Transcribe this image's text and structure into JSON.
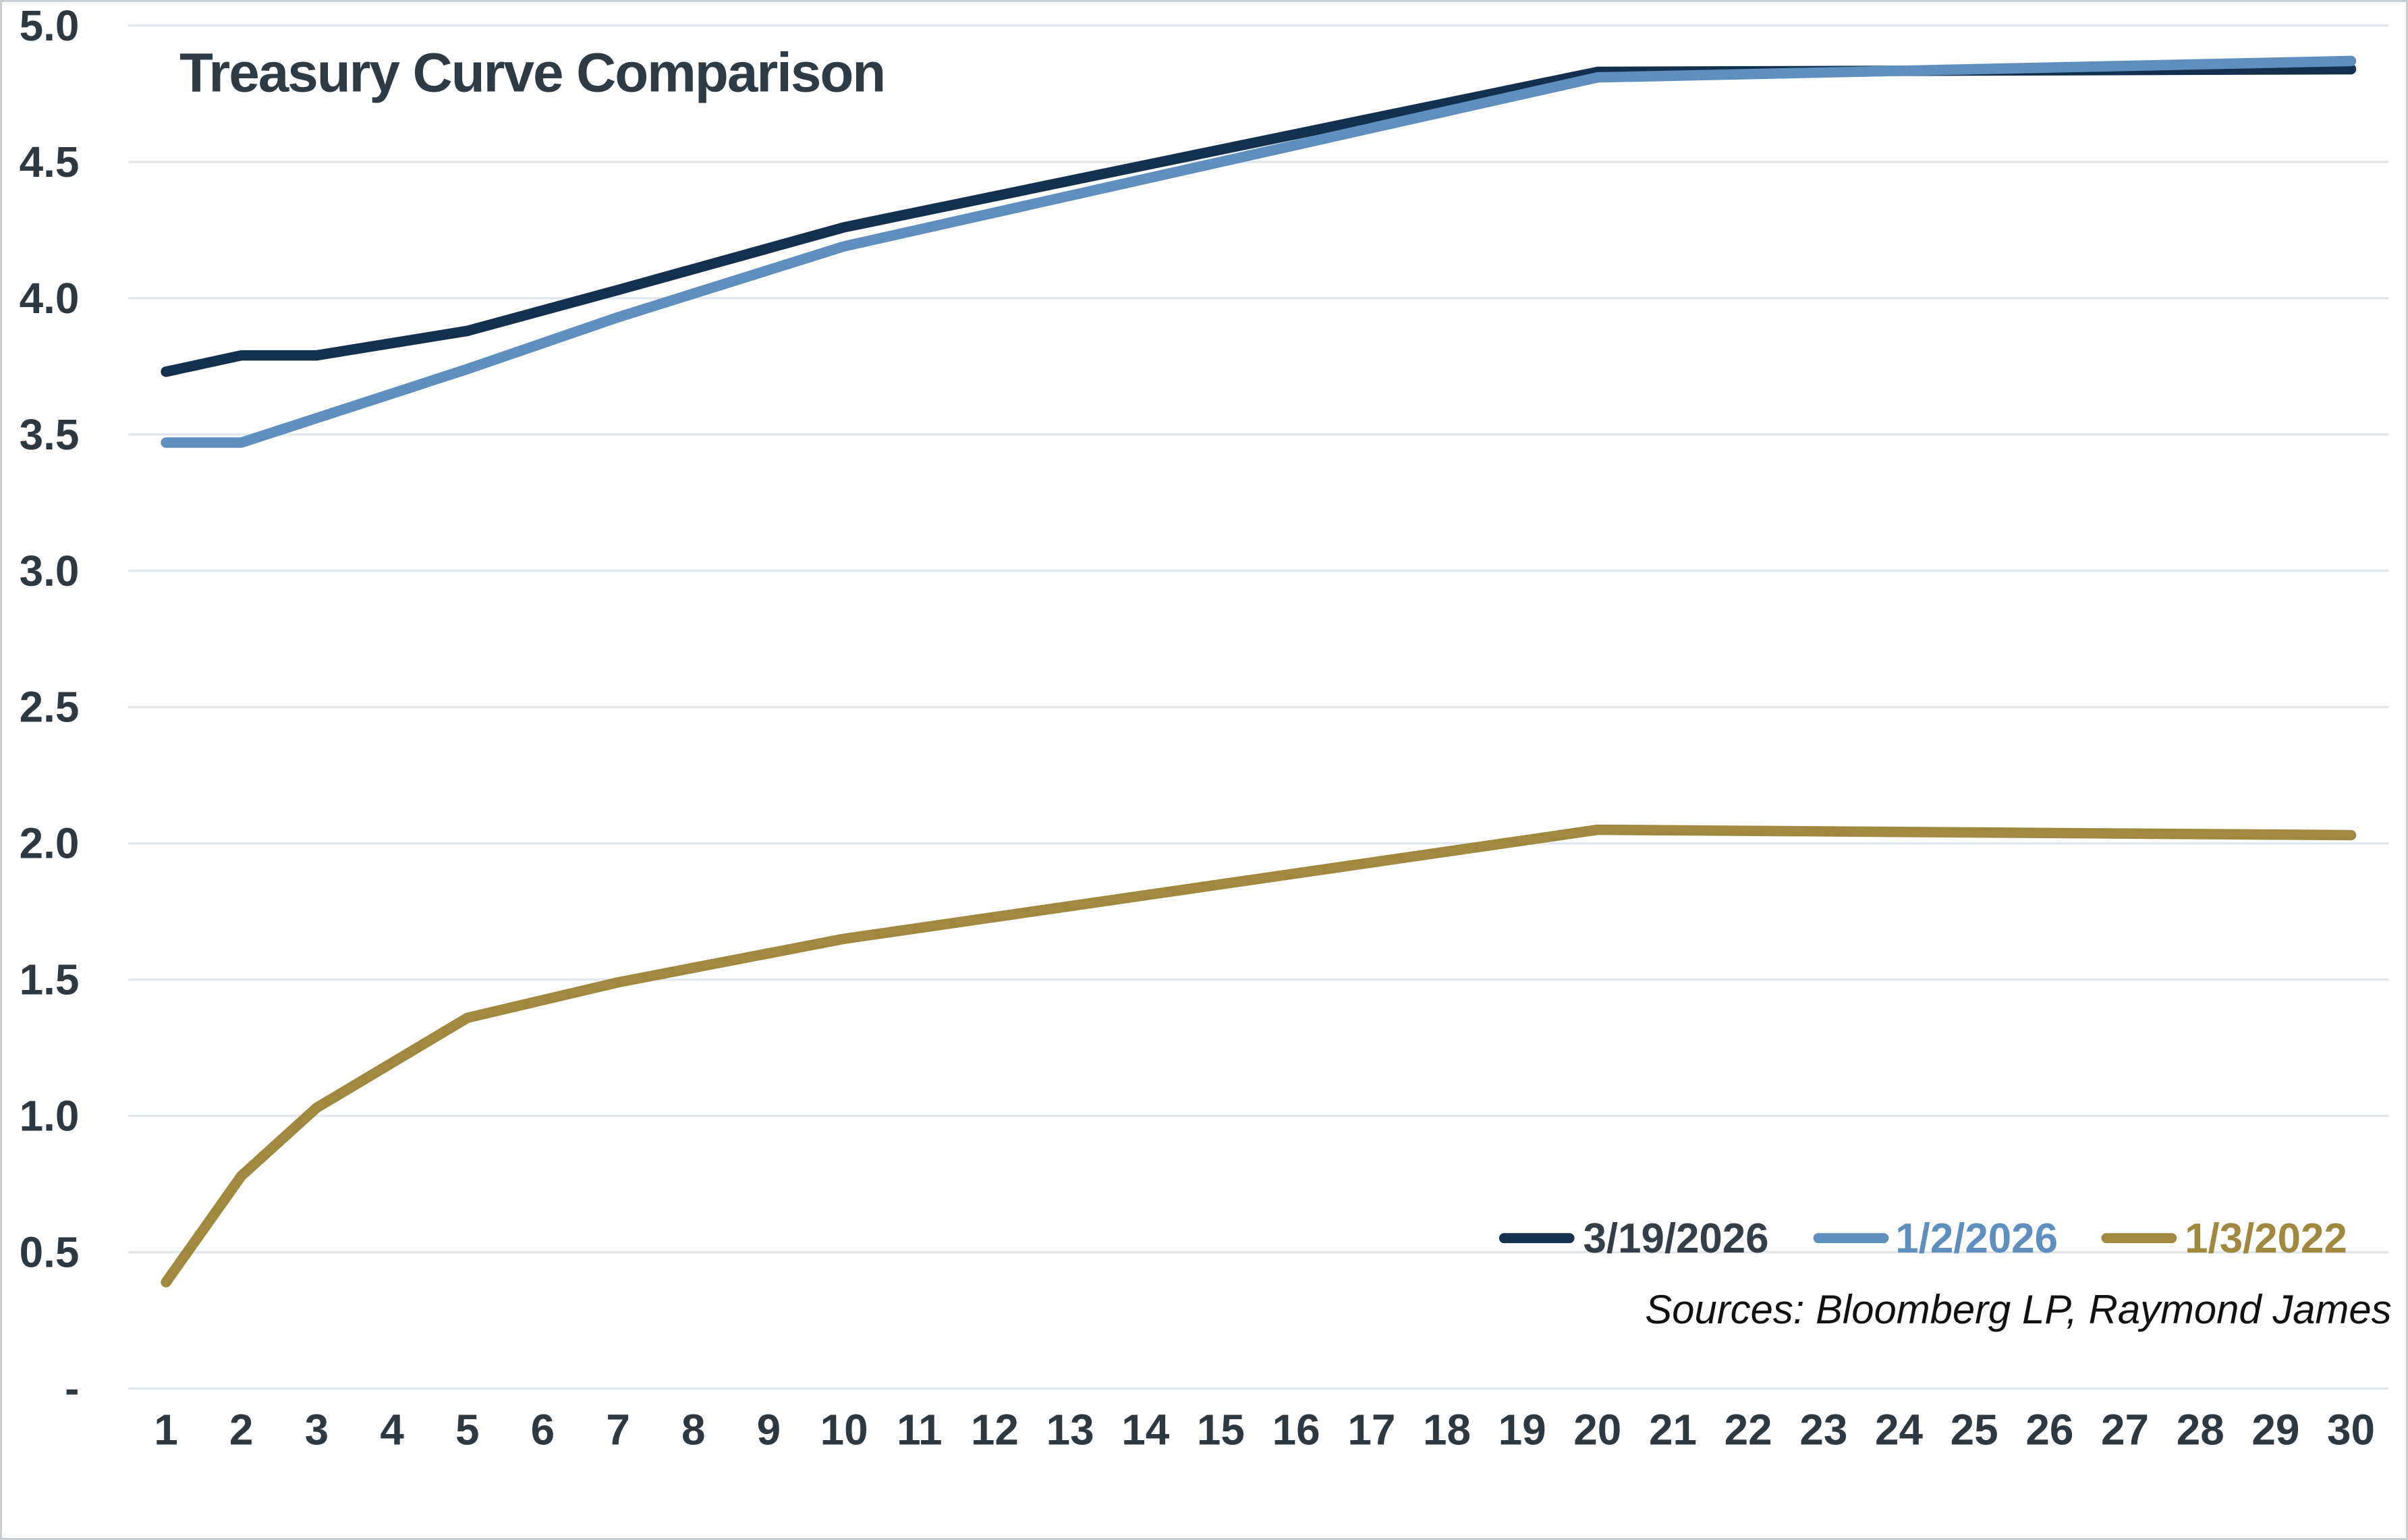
{
  "title": "Treasury Curve Comparison",
  "source_note": "Sources: Bloomberg LP, Raymond James",
  "colors": {
    "navy": "#14304f",
    "blue": "#5e8fbe",
    "gold": "#a0883f",
    "axis_text": "#2e3840",
    "title_text": "#2e3a44",
    "grid": "#e2e8ec",
    "frame_border": "#c8cdd1",
    "source_text": "#111111",
    "legend_text_colors": [
      "#333e48",
      "#5e8fbe",
      "#a0883f"
    ]
  },
  "chart_data": {
    "type": "line",
    "title": "Treasury Curve Comparison",
    "xlabel": "",
    "ylabel": "",
    "x_unit": "maturity in years",
    "ylim": [
      0,
      5.0
    ],
    "y_grid_step": 0.5,
    "grid": "horizontal",
    "legend_position": "inside bottom-right",
    "x_ticks": [
      1,
      2,
      3,
      4,
      5,
      6,
      7,
      8,
      9,
      10,
      11,
      12,
      13,
      14,
      15,
      16,
      17,
      18,
      19,
      20,
      21,
      22,
      23,
      24,
      25,
      26,
      27,
      28,
      29,
      30
    ],
    "y_tick_labels": [
      "5.0",
      "4.5",
      "4.0",
      "3.5",
      "3.0",
      "2.5",
      "2.0",
      "1.5",
      "1.0",
      "0.5",
      "-"
    ],
    "y_tick_values": [
      5.0,
      4.5,
      4.0,
      3.5,
      3.0,
      2.5,
      2.0,
      1.5,
      1.0,
      0.5,
      0
    ],
    "series": [
      {
        "name": "3/19/2026",
        "color": "#14304f",
        "x": [
          1,
          2,
          3,
          5,
          7,
          10,
          20,
          30
        ],
        "y": [
          3.73,
          3.79,
          3.79,
          3.88,
          4.03,
          4.26,
          4.83,
          4.84
        ]
      },
      {
        "name": "1/2/2026",
        "color": "#5e8fbe",
        "x": [
          1,
          2,
          3,
          5,
          7,
          10,
          20,
          30
        ],
        "y": [
          3.47,
          3.47,
          3.56,
          3.74,
          3.93,
          4.19,
          4.81,
          4.87
        ]
      },
      {
        "name": "1/3/2022",
        "color": "#a0883f",
        "x": [
          1,
          2,
          3,
          5,
          7,
          10,
          20,
          30
        ],
        "y": [
          0.39,
          0.78,
          1.03,
          1.36,
          1.49,
          1.65,
          2.05,
          2.03
        ]
      }
    ]
  }
}
